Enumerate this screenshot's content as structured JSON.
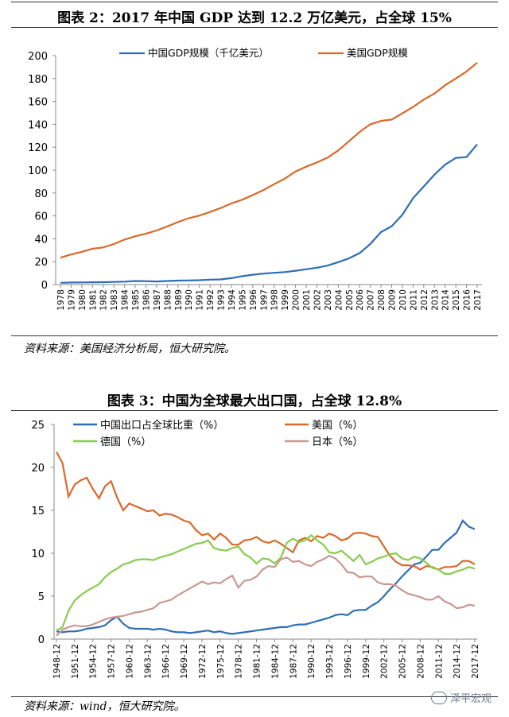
{
  "chart_data": [
    {
      "type": "line",
      "title": "图表 2：2017 年中国 GDP 达到 12.2 万亿美元，占全球 15%",
      "x": [
        1978,
        1979,
        1980,
        1981,
        1982,
        1983,
        1984,
        1985,
        1986,
        1987,
        1988,
        1989,
        1990,
        1991,
        1992,
        1993,
        1994,
        1995,
        1996,
        1997,
        1998,
        1999,
        2000,
        2001,
        2002,
        2003,
        2004,
        2005,
        2006,
        2007,
        2008,
        2009,
        2010,
        2011,
        2012,
        2013,
        2014,
        2015,
        2016,
        2017
      ],
      "ylim": [
        0,
        200
      ],
      "yticks": [
        0,
        20,
        40,
        60,
        80,
        100,
        120,
        140,
        160,
        180,
        200
      ],
      "series": [
        {
          "name": "中国GDP规模（千亿美元）",
          "color": "#2e6db4",
          "values": [
            1.5,
            1.8,
            1.9,
            2.0,
            2.1,
            2.3,
            2.6,
            3.1,
            3.0,
            2.7,
            3.1,
            3.5,
            3.6,
            3.8,
            4.3,
            4.5,
            5.6,
            7.3,
            8.6,
            9.6,
            10.3,
            10.9,
            12.1,
            13.4,
            14.7,
            16.6,
            19.6,
            22.9,
            27.5,
            35.5,
            45.9,
            51.0,
            61.0,
            75.5,
            85.7,
            96.1,
            104.8,
            110.6,
            111.4,
            122.4
          ]
        },
        {
          "name": "美国GDP规模",
          "color": "#d9692b",
          "values": [
            23.5,
            26.3,
            28.6,
            31.3,
            32.4,
            35.4,
            39.3,
            42.2,
            44.5,
            47.2,
            50.8,
            54.6,
            58.0,
            60.3,
            63.4,
            66.9,
            70.9,
            74.1,
            78.2,
            82.6,
            87.7,
            92.6,
            98.8,
            103.0,
            106.7,
            110.9,
            117.2,
            125.2,
            133.3,
            140.0,
            143.0,
            144.2,
            149.6,
            155.2,
            161.6,
            166.9,
            174.2,
            180.0,
            186.2,
            193.9
          ]
        }
      ],
      "source": "资料来源：美国经济分析局，恒大研究院。"
    },
    {
      "type": "line",
      "title": "图表 3：中国为全球最大出口国，占全球 12.8%",
      "x": [
        1948,
        1949,
        1950,
        1951,
        1952,
        1953,
        1954,
        1955,
        1956,
        1957,
        1958,
        1959,
        1960,
        1961,
        1962,
        1963,
        1964,
        1965,
        1966,
        1967,
        1968,
        1969,
        1970,
        1971,
        1972,
        1973,
        1974,
        1975,
        1976,
        1977,
        1978,
        1979,
        1980,
        1981,
        1982,
        1983,
        1984,
        1985,
        1986,
        1987,
        1988,
        1989,
        1990,
        1991,
        1992,
        1993,
        1994,
        1995,
        1996,
        1997,
        1998,
        1999,
        2000,
        2001,
        2002,
        2003,
        2004,
        2005,
        2006,
        2007,
        2008,
        2009,
        2010,
        2011,
        2012,
        2013,
        2014,
        2015,
        2016,
        2017
      ],
      "xticks": [
        "1948-12",
        "1951-12",
        "1954-12",
        "1957-12",
        "1960-12",
        "1963-12",
        "1966-12",
        "1969-12",
        "1972-12",
        "1975-12",
        "1978-12",
        "1981-12",
        "1984-12",
        "1987-12",
        "1990-12",
        "1993-12",
        "1996-12",
        "1999-12",
        "2002-12",
        "2005-12",
        "2008-12",
        "2011-12",
        "2014-12",
        "2017-12"
      ],
      "ylim": [
        0,
        25
      ],
      "yticks": [
        0,
        5,
        10,
        15,
        20,
        25
      ],
      "series": [
        {
          "name": "中国出口占全球比重（%）",
          "color": "#2e6db4",
          "values": [
            0.9,
            0.8,
            0.9,
            0.9,
            1.0,
            1.2,
            1.3,
            1.4,
            1.6,
            2.2,
            2.6,
            1.8,
            1.3,
            1.2,
            1.2,
            1.2,
            1.1,
            1.2,
            1.1,
            0.9,
            0.8,
            0.8,
            0.7,
            0.8,
            0.9,
            1.0,
            0.8,
            0.9,
            0.7,
            0.6,
            0.7,
            0.8,
            0.9,
            1.0,
            1.1,
            1.2,
            1.3,
            1.4,
            1.4,
            1.6,
            1.7,
            1.7,
            1.9,
            2.1,
            2.3,
            2.5,
            2.8,
            2.9,
            2.8,
            3.3,
            3.4,
            3.4,
            3.9,
            4.3,
            5.0,
            5.8,
            6.5,
            7.3,
            8.0,
            8.7,
            8.9,
            9.6,
            10.4,
            10.4,
            11.2,
            11.8,
            12.4,
            13.8,
            13.1,
            12.8
          ]
        },
        {
          "name": "美国（%）",
          "color": "#d9692b",
          "values": [
            21.8,
            20.5,
            16.6,
            18.0,
            18.5,
            18.8,
            17.5,
            16.4,
            17.8,
            18.4,
            16.5,
            15.0,
            15.8,
            15.5,
            15.2,
            14.9,
            15.0,
            14.4,
            14.6,
            14.5,
            14.2,
            13.8,
            13.6,
            12.7,
            12.1,
            12.3,
            11.6,
            12.3,
            11.8,
            11.0,
            11.0,
            11.5,
            11.6,
            11.9,
            11.4,
            11.2,
            11.5,
            11.1,
            10.6,
            10.1,
            11.5,
            11.8,
            11.4,
            12.0,
            11.8,
            12.3,
            12.0,
            11.5,
            11.7,
            12.3,
            12.4,
            12.3,
            12.0,
            11.9,
            10.8,
            9.7,
            9.0,
            8.6,
            8.6,
            8.5,
            8.1,
            8.5,
            8.4,
            8.1,
            8.4,
            8.4,
            8.5,
            9.1,
            9.1,
            8.7
          ]
        },
        {
          "name": "德国（%）",
          "color": "#86cc4d",
          "values": [
            1.0,
            1.4,
            3.3,
            4.5,
            5.1,
            5.6,
            6.0,
            6.4,
            7.2,
            7.8,
            8.2,
            8.7,
            8.9,
            9.2,
            9.3,
            9.3,
            9.2,
            9.5,
            9.7,
            9.9,
            10.2,
            10.5,
            10.8,
            11.1,
            11.2,
            11.5,
            10.6,
            10.4,
            10.3,
            10.6,
            10.8,
            9.9,
            9.5,
            8.8,
            9.4,
            9.3,
            8.8,
            9.5,
            11.2,
            11.7,
            11.3,
            11.5,
            12.1,
            11.5,
            11.0,
            10.1,
            10.0,
            10.3,
            9.7,
            9.1,
            9.8,
            8.7,
            9.0,
            9.4,
            9.6,
            9.9,
            10.0,
            9.4,
            9.2,
            9.6,
            9.4,
            8.9,
            8.3,
            8.1,
            7.6,
            7.6,
            7.9,
            8.1,
            8.4,
            8.2
          ]
        },
        {
          "name": "日本（%）",
          "color": "#c89892",
          "values": [
            0.4,
            1.1,
            1.4,
            1.6,
            1.5,
            1.5,
            1.7,
            2.0,
            2.3,
            2.5,
            2.6,
            2.7,
            2.9,
            3.1,
            3.2,
            3.4,
            3.6,
            4.2,
            4.4,
            4.6,
            5.1,
            5.5,
            5.9,
            6.3,
            6.7,
            6.4,
            6.6,
            6.5,
            7.0,
            7.4,
            6.0,
            6.8,
            6.9,
            7.3,
            8.1,
            8.5,
            8.4,
            9.3,
            9.5,
            9.0,
            9.1,
            8.7,
            8.5,
            9.0,
            9.3,
            9.7,
            9.4,
            8.7,
            7.8,
            7.7,
            7.2,
            7.3,
            7.3,
            6.6,
            6.4,
            6.4,
            6.2,
            5.7,
            5.3,
            5.1,
            4.9,
            4.6,
            4.6,
            5.0,
            4.4,
            4.1,
            3.6,
            3.7,
            4.0,
            3.9
          ]
        }
      ],
      "source": "资料来源：wind，恒大研究院。"
    }
  ],
  "watermark": "泽平宏观"
}
